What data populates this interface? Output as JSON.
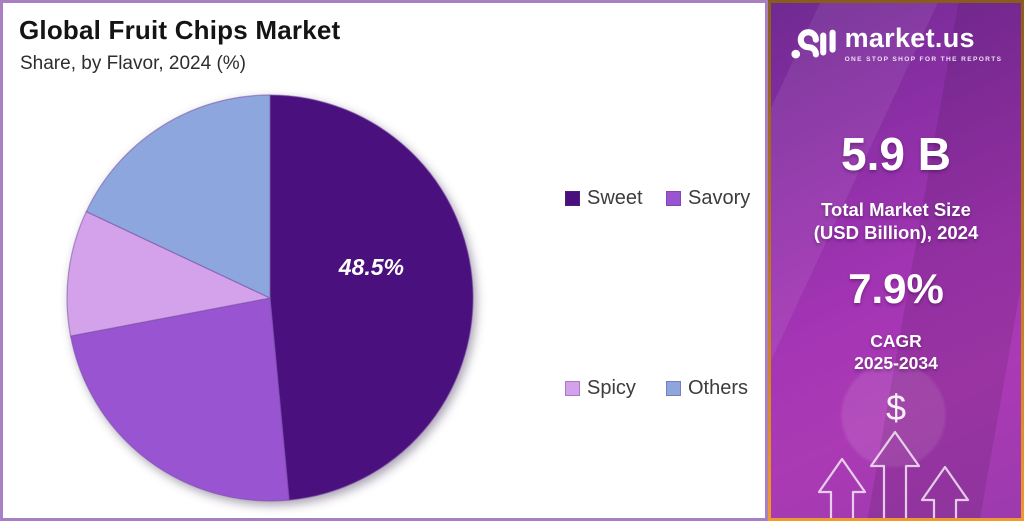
{
  "main": {
    "title": "Global Fruit Chips Market",
    "subtitle": "Share, by Flavor, 2024 (%)"
  },
  "chart_data": {
    "type": "pie",
    "title": "Global Fruit Chips Market",
    "subtitle": "Share, by Flavor, 2024 (%)",
    "categories": [
      "Sweet",
      "Savory",
      "Spicy",
      "Others"
    ],
    "values": [
      48.5,
      23.5,
      10.0,
      18.0
    ],
    "values_estimated": [
      false,
      true,
      true,
      true
    ],
    "unit": "%",
    "colors": [
      "#4a117e",
      "#9854d1",
      "#d3a2ea",
      "#8da6dd"
    ],
    "slice_labels": [
      "48.5%",
      "",
      "",
      ""
    ],
    "start_angle_deg": 0,
    "direction": "clockwise",
    "legend_position": "right"
  },
  "sidebar": {
    "logo_text": "market.us",
    "logo_tagline": "ONE STOP SHOP FOR THE REPORTS",
    "market_size_value": "5.9 B",
    "market_size_label_line1": "Total Market Size",
    "market_size_label_line2": "(USD Billion), 2024",
    "cagr_value": "7.9%",
    "cagr_label_line1": "CAGR",
    "cagr_label_line2": "2025-2034",
    "dollar_symbol": "$"
  },
  "colors": {
    "main_panel_border": "#a77fc2",
    "legend_text": "#3c3c3c",
    "sidebar_border_top": "#8a5c1c",
    "sidebar_border_bottom": "#f09a2e",
    "sidebar_bg_dark": "#6f2a92",
    "sidebar_bg_bright": "#ab3ab4",
    "pie_label_text": "#ffffff"
  }
}
